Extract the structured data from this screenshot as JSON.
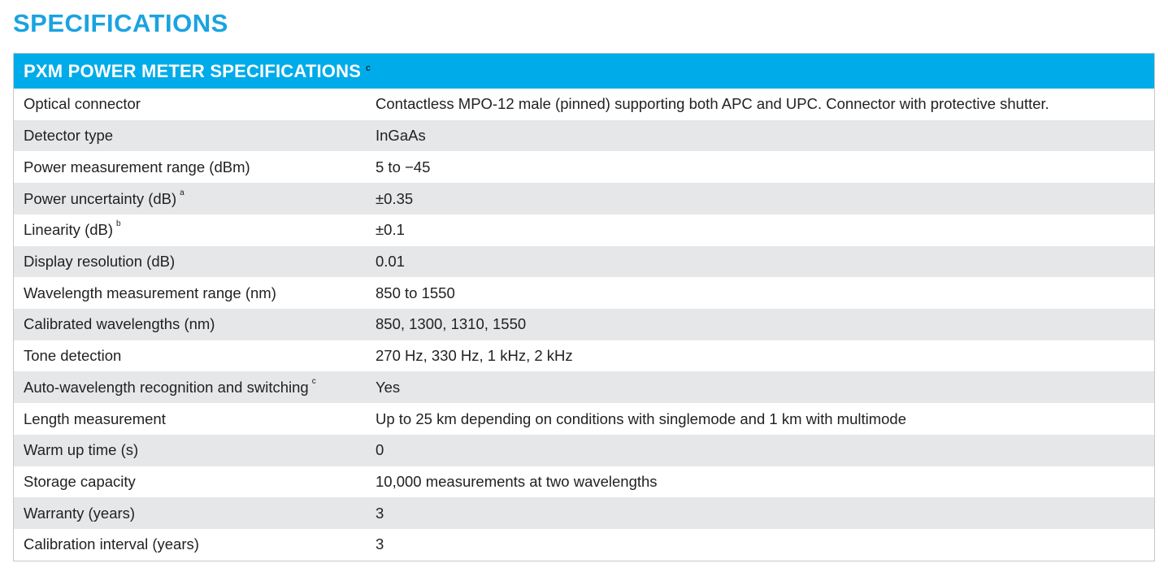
{
  "page_title": "SPECIFICATIONS",
  "table": {
    "header": "PXM POWER METER SPECIFICATIONS",
    "header_note": "c",
    "rows": [
      {
        "label": "Optical connector",
        "note": "",
        "value": "Contactless MPO-12 male (pinned) supporting both APC and UPC. Connector with protective shutter."
      },
      {
        "label": "Detector type",
        "note": "",
        "value": "InGaAs"
      },
      {
        "label": "Power measurement range (dBm)",
        "note": "",
        "value": "5 to −45"
      },
      {
        "label": "Power uncertainty (dB)",
        "note": "a",
        "value": "±0.35"
      },
      {
        "label": "Linearity (dB)",
        "note": "b",
        "value": "±0.1"
      },
      {
        "label": "Display resolution (dB)",
        "note": "",
        "value": "0.01"
      },
      {
        "label": "Wavelength measurement range (nm)",
        "note": "",
        "value": "850 to 1550"
      },
      {
        "label": "Calibrated wavelengths (nm)",
        "note": "",
        "value": "850, 1300, 1310, 1550"
      },
      {
        "label": "Tone detection",
        "note": "",
        "value": "270 Hz, 330 Hz, 1 kHz, 2 kHz"
      },
      {
        "label": "Auto-wavelength recognition and switching",
        "note": "c",
        "value": "Yes"
      },
      {
        "label": "Length measurement",
        "note": "",
        "value": "Up to 25 km depending on conditions with singlemode and 1 km with multimode"
      },
      {
        "label": "Warm up time (s)",
        "note": "",
        "value": "0"
      },
      {
        "label": "Storage capacity",
        "note": "",
        "value": "10,000 measurements at two wavelengths"
      },
      {
        "label": "Warranty (years)",
        "note": "",
        "value": "3"
      },
      {
        "label": "Calibration interval (years)",
        "note": "",
        "value": "3"
      }
    ]
  },
  "colors": {
    "title": "#1aa3e0",
    "header_bg": "#00abe9",
    "alt_row_bg": "#e6e7e8"
  }
}
